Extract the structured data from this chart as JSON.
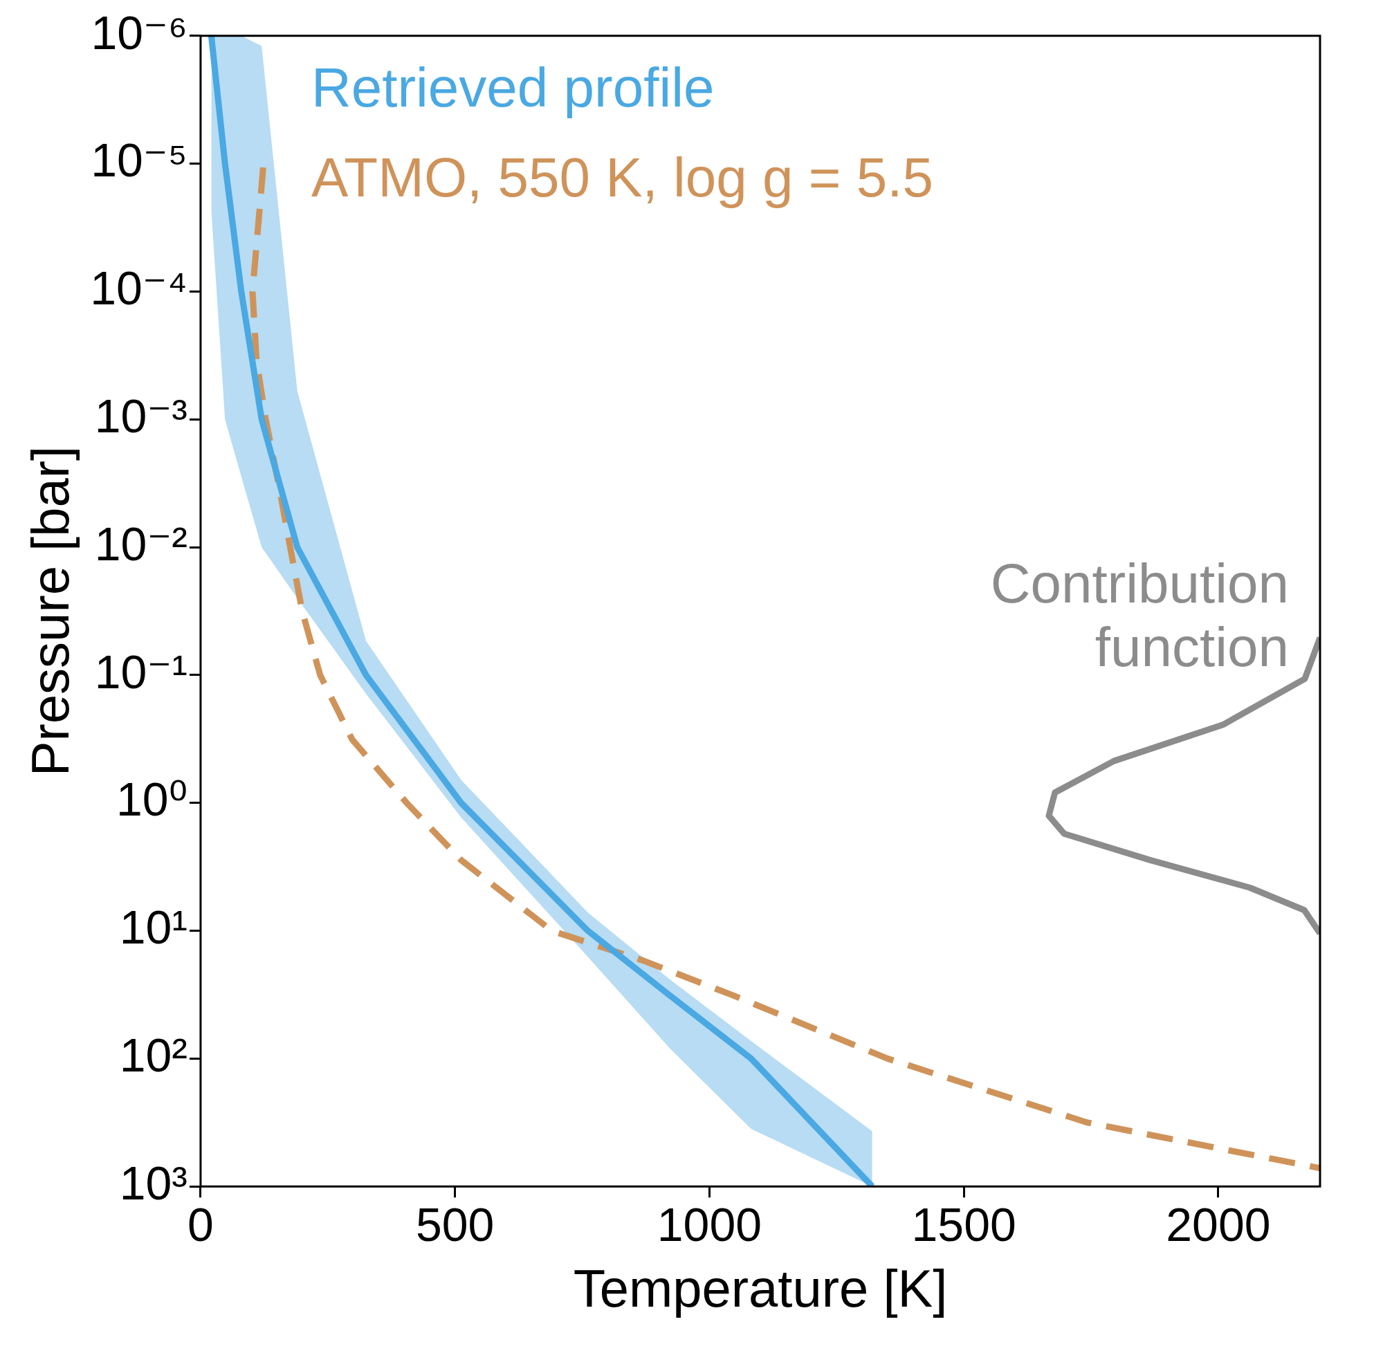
{
  "chart_data": {
    "type": "line",
    "xlabel": "Temperature [K]",
    "ylabel": "Pressure [bar]",
    "xlim": [
      0,
      2200
    ],
    "xticks": [
      0,
      500,
      1000,
      1500,
      2000
    ],
    "ylim": [
      1000,
      1e-06
    ],
    "yticks": [
      {
        "value": 1e-06,
        "label": "10⁻⁶"
      },
      {
        "value": 1e-05,
        "label": "10⁻⁵"
      },
      {
        "value": 0.0001,
        "label": "10⁻⁴"
      },
      {
        "value": 0.001,
        "label": "10⁻³"
      },
      {
        "value": 0.01,
        "label": "10⁻²"
      },
      {
        "value": 0.1,
        "label": "10⁻¹"
      },
      {
        "value": 1,
        "label": "10⁰"
      },
      {
        "value": 10,
        "label": "10¹"
      },
      {
        "value": 100,
        "label": "10²"
      },
      {
        "value": 1000,
        "label": "10³"
      }
    ],
    "log": "y",
    "grid": false,
    "legend": "top left",
    "marker": "none",
    "series": [
      {
        "name": "Retrieved profile",
        "color": "#4aa8e2",
        "line_style": "solid",
        "x": [
          21,
          48,
          80,
          120,
          190,
          325,
          512,
          761,
          922,
          1082,
          1320
        ],
        "values": [
          1e-06,
          1e-05,
          0.0001,
          0.001,
          0.01,
          0.1,
          1,
          10,
          32,
          100,
          1000
        ],
        "lower": [
          1e-06,
          1e-06,
          1e-06,
          1.2e-06,
          0.0006,
          0.054,
          0.66,
          7.2,
          24,
          73,
          370
        ],
        "upper": [
          2.3e-05,
          0.001,
          0.0028,
          0.01,
          0.025,
          0.14,
          1.3,
          16,
          83,
          355,
          1000
        ]
      },
      {
        "name": "ATMO, 550 K, log g = 5.5",
        "color": "#cf935a",
        "line_style": "dashed",
        "x": [
          123,
          102,
          110,
          128,
          155,
          176,
          200,
          235,
          298,
          405,
          512,
          690,
          868,
          1046,
          1350,
          1742,
          2200
        ],
        "values": [
          1.07e-05,
          0.0001,
          0.00035,
          0.001,
          0.0035,
          0.01,
          0.032,
          0.1,
          0.32,
          1,
          2.8,
          10,
          17,
          32,
          100,
          316,
          720
        ]
      },
      {
        "color": "#8c8c8c",
        "line_style": "solid",
        "x": [
          2200,
          2170,
          2009,
          1795,
          1679,
          1667,
          1697,
          1866,
          2062,
          2169,
          2200
        ],
        "values": [
          0.051,
          0.107,
          0.245,
          0.47,
          0.83,
          1.26,
          1.74,
          2.8,
          4.6,
          6.9,
          10.5
        ]
      }
    ],
    "annotations": [
      "Contribution function"
    ]
  }
}
